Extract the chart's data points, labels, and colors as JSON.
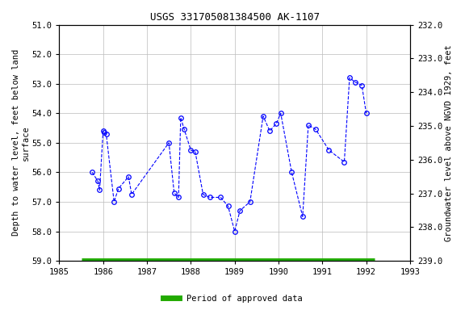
{
  "title": "USGS 331705081384500 AK-1107",
  "ylabel_left": "Depth to water level, feet below land\nsurface",
  "ylabel_right": "Groundwater level above NGVD 1929, feet",
  "ylim_left": [
    51.0,
    59.0
  ],
  "ylim_right": [
    239.0,
    232.0
  ],
  "xlim": [
    1985,
    1993
  ],
  "yticks_left": [
    51.0,
    52.0,
    53.0,
    54.0,
    55.0,
    56.0,
    57.0,
    58.0,
    59.0
  ],
  "yticks_right": [
    239.0,
    238.0,
    237.0,
    236.0,
    235.0,
    234.0,
    233.0,
    232.0
  ],
  "xticks": [
    1985,
    1986,
    1987,
    1988,
    1989,
    1990,
    1991,
    1992,
    1993
  ],
  "data_x": [
    1985.75,
    1985.88,
    1985.92,
    1986.0,
    1986.03,
    1986.07,
    1986.25,
    1986.35,
    1986.58,
    1986.65,
    1987.5,
    1987.62,
    1987.72,
    1987.77,
    1987.85,
    1988.0,
    1988.1,
    1988.28,
    1988.43,
    1988.68,
    1988.85,
    1989.0,
    1989.12,
    1989.35,
    1989.65,
    1989.8,
    1989.95,
    1990.05,
    1990.3,
    1990.55,
    1990.68,
    1990.85,
    1991.15,
    1991.5,
    1991.62,
    1991.75,
    1991.9,
    1992.0
  ],
  "data_y": [
    56.0,
    56.3,
    56.6,
    54.6,
    54.65,
    54.7,
    57.0,
    56.55,
    56.15,
    56.75,
    55.0,
    56.7,
    56.85,
    54.15,
    54.55,
    55.25,
    55.3,
    56.75,
    56.85,
    56.85,
    57.15,
    58.0,
    57.3,
    57.0,
    54.1,
    54.6,
    54.35,
    54.0,
    56.0,
    57.5,
    54.4,
    54.55,
    55.25,
    55.65,
    52.8,
    52.95,
    53.05,
    54.0
  ],
  "line_color": "#0000FF",
  "marker_color": "#0000FF",
  "line_style": "--",
  "marker_style": "o",
  "marker_size": 4,
  "green_bar_color": "#22AA00",
  "green_bar_xstart": 1985.5,
  "green_bar_xend": 1992.2,
  "legend_label": "Period of approved data",
  "bg_color": "#ffffff",
  "grid_color": "#bbbbbb",
  "title_fontsize": 9,
  "label_fontsize": 7.5,
  "tick_fontsize": 7.5
}
